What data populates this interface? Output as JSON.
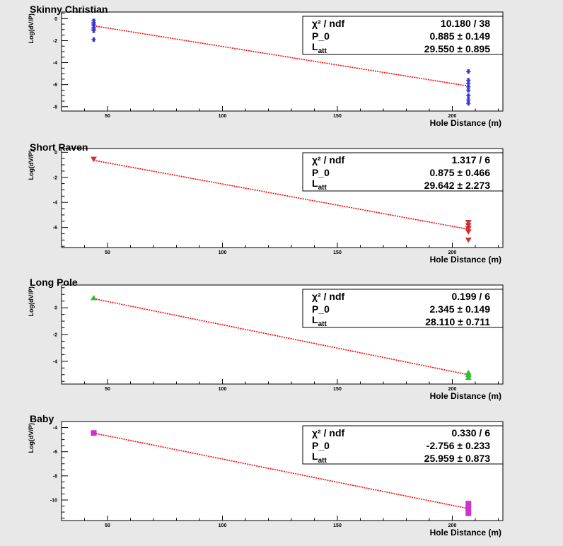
{
  "colors": {
    "background": "#e8e8e8",
    "frame": "#ffffff",
    "fit": "#ff0000"
  },
  "chart_data": [
    {
      "type": "scatter",
      "title": "Skinny Christian",
      "xlabel": "Hole Distance (m)",
      "ylabel": "Log(dV/P)",
      "xlim": [
        30,
        222
      ],
      "ylim": [
        -8.4,
        0.6
      ],
      "xticks": [
        50,
        100,
        150,
        200
      ],
      "yticks": [
        0,
        -2,
        -4,
        -6,
        -8
      ],
      "marker": "star",
      "color": "#3333cc",
      "points": [
        {
          "x": 44,
          "y": -0.2
        },
        {
          "x": 44,
          "y": -0.35
        },
        {
          "x": 44,
          "y": -0.5
        },
        {
          "x": 44,
          "y": -0.65
        },
        {
          "x": 44,
          "y": -0.8
        },
        {
          "x": 44,
          "y": -0.95
        },
        {
          "x": 44,
          "y": -1.1
        },
        {
          "x": 44,
          "y": -1.9
        },
        {
          "x": 207,
          "y": -4.8
        },
        {
          "x": 207,
          "y": -5.6
        },
        {
          "x": 207,
          "y": -5.9
        },
        {
          "x": 207,
          "y": -6.2
        },
        {
          "x": 207,
          "y": -6.5
        },
        {
          "x": 207,
          "y": -7.0
        },
        {
          "x": 207,
          "y": -7.4
        },
        {
          "x": 207,
          "y": -7.7
        }
      ],
      "fit": {
        "x_from": 44,
        "x_to": 207,
        "y_from": -0.65,
        "y_to": -6.13
      },
      "stats": {
        "chi2_label": "χ² / ndf",
        "chi2_value": "10.180 / 38",
        "p0_label": "P_0",
        "p0_value": "0.885 ±  0.149",
        "latt_label": "L",
        "latt_sub": "att",
        "latt_value": "29.550 ±  0.895"
      }
    },
    {
      "type": "scatter",
      "title": "Short Raven",
      "xlabel": "Hole Distance (m)",
      "ylabel": "Log(dV/P)",
      "xlim": [
        30,
        222
      ],
      "ylim": [
        -7.6,
        0.3
      ],
      "xticks": [
        50,
        100,
        150,
        200
      ],
      "yticks": [
        0,
        -2,
        -4,
        -6
      ],
      "marker": "triangle-down",
      "color": "#cc3333",
      "points": [
        {
          "x": 44,
          "y": -0.55
        },
        {
          "x": 207,
          "y": -5.6
        },
        {
          "x": 207,
          "y": -5.85
        },
        {
          "x": 207,
          "y": -6.1
        },
        {
          "x": 207,
          "y": -6.35
        },
        {
          "x": 207,
          "y": -7.0
        }
      ],
      "fit": {
        "x_from": 44,
        "x_to": 207,
        "y_from": -0.64,
        "y_to": -6.14
      },
      "stats": {
        "chi2_label": "χ² / ndf",
        "chi2_value": "1.317 / 6",
        "p0_label": "P_0",
        "p0_value": "0.875 ±  0.466",
        "latt_label": "L",
        "latt_sub": "att",
        "latt_value": "29.642 ±  2.273"
      }
    },
    {
      "type": "scatter",
      "title": "Long Pole",
      "xlabel": "Hole Distance (m)",
      "ylabel": "Log(dV/P)",
      "xlim": [
        30,
        222
      ],
      "ylim": [
        -5.7,
        1.7
      ],
      "xticks": [
        50,
        100,
        150,
        200
      ],
      "yticks": [
        0,
        -2,
        -4
      ],
      "marker": "triangle-up",
      "color": "#33bb33",
      "points": [
        {
          "x": 44,
          "y": 0.75
        },
        {
          "x": 207,
          "y": -4.85
        },
        {
          "x": 207,
          "y": -5.0
        },
        {
          "x": 207,
          "y": -5.2
        }
      ],
      "fit": {
        "x_from": 44,
        "x_to": 207,
        "y_from": 0.68,
        "y_to": -5.0
      },
      "stats": {
        "chi2_label": "χ² / ndf",
        "chi2_value": "0.199 / 6",
        "p0_label": "P_0",
        "p0_value": "2.345 ±  0.149",
        "latt_label": "L",
        "latt_sub": "att",
        "latt_value": "28.110 ±  0.711"
      }
    },
    {
      "type": "scatter",
      "title": "Baby",
      "xlabel": "Hole Distance (m)",
      "ylabel": "Log(dV/P)",
      "xlim": [
        30,
        222
      ],
      "ylim": [
        -11.7,
        -3.5
      ],
      "xticks": [
        50,
        100,
        150,
        200
      ],
      "yticks": [
        -4,
        -6,
        -8,
        -10
      ],
      "marker": "square",
      "color": "#cc33cc",
      "points": [
        {
          "x": 44,
          "y": -4.45
        },
        {
          "x": 207,
          "y": -10.3
        },
        {
          "x": 207,
          "y": -10.7
        },
        {
          "x": 207,
          "y": -11.1
        }
      ],
      "fit": {
        "x_from": 44,
        "x_to": 207,
        "y_from": -4.46,
        "y_to": -10.71
      },
      "stats": {
        "chi2_label": "χ² / ndf",
        "chi2_value": "0.330 / 6",
        "p0_label": "P_0",
        "p0_value": "-2.756 ±  0.233",
        "latt_label": "L",
        "latt_sub": "att",
        "latt_value": "25.959 ±  0.873"
      }
    }
  ]
}
